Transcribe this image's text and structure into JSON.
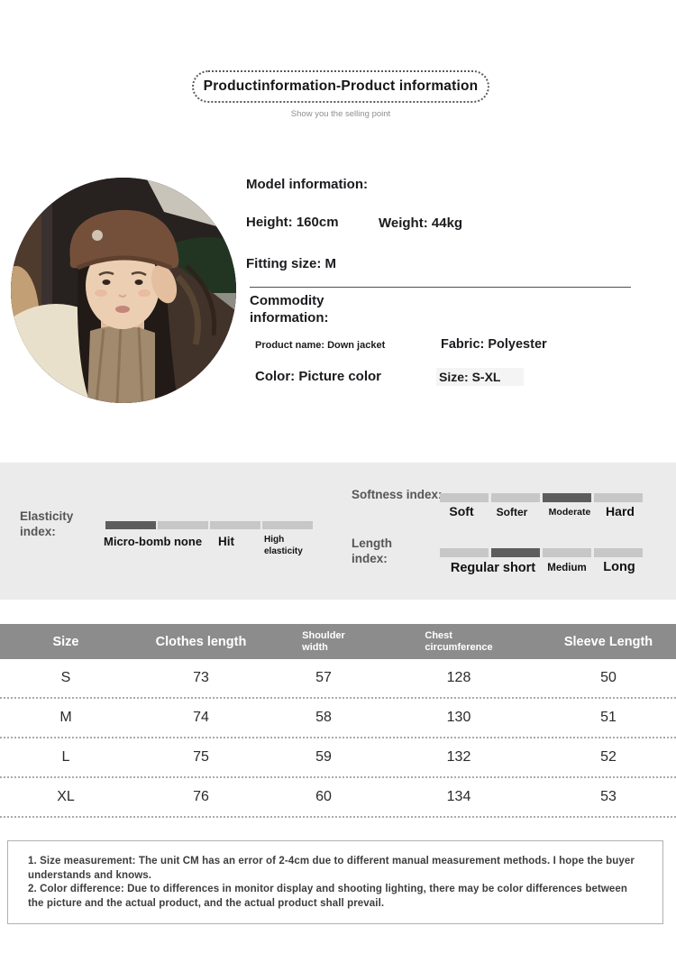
{
  "colors": {
    "page_bg": "#ffffff",
    "band_bg": "#ebebeb",
    "bar_active": "#5d5d5d",
    "bar_inactive": "#c7c7c7",
    "table_header_bg": "#8c8c8c",
    "table_header_text": "#ffffff",
    "text_dark": "#1b1b1f",
    "text_gray": "#565656",
    "note_border": "#b0b0b0",
    "note_text": "#3d3d3d"
  },
  "header": {
    "title": "Productinformation-Product information",
    "subtitle": "Show you the selling point"
  },
  "model_info": {
    "heading": "Model information:",
    "height": "Height: 160cm",
    "weight": "Weight: 44kg",
    "fitting": "Fitting size: M"
  },
  "commodity_info": {
    "heading": "Commodity\ninformation:",
    "product_name": "Product name: Down jacket",
    "fabric": "Fabric: Polyester",
    "color": "Color: Picture color",
    "size": "Size: S-XL"
  },
  "indices": {
    "elasticity": {
      "label": "Elasticity\nindex:",
      "segments": 4,
      "active": 0,
      "options": [
        "Micro-bomb none",
        "Hit",
        "High\nelasticity"
      ]
    },
    "softness": {
      "label": "Softness index:",
      "segments": 4,
      "active": 2,
      "options": [
        "Soft",
        "Softer",
        "Moderate",
        "Hard"
      ]
    },
    "length": {
      "label": "Length\nindex:",
      "segments": 4,
      "active": 1,
      "options": [
        "Regular short",
        "Medium",
        "Long"
      ]
    }
  },
  "size_table": {
    "headers": [
      "Size",
      "Clothes length",
      "Shoulder\nwidth",
      "Chest\ncircumference",
      "Sleeve Length"
    ],
    "rows": [
      [
        "S",
        "73",
        "57",
        "128",
        "50"
      ],
      [
        "M",
        "74",
        "58",
        "130",
        "51"
      ],
      [
        "L",
        "75",
        "59",
        "132",
        "52"
      ],
      [
        "XL",
        "76",
        "60",
        "134",
        "53"
      ]
    ]
  },
  "notes": {
    "items": [
      "1. Size measurement: The unit CM has an error of 2-4cm due to different manual measurement methods. I hope the buyer understands and knows.",
      "2. Color difference: Due to differences in monitor display and shooting lighting, there may be color differences between the picture and the actual product, and the actual product shall prevail."
    ]
  }
}
